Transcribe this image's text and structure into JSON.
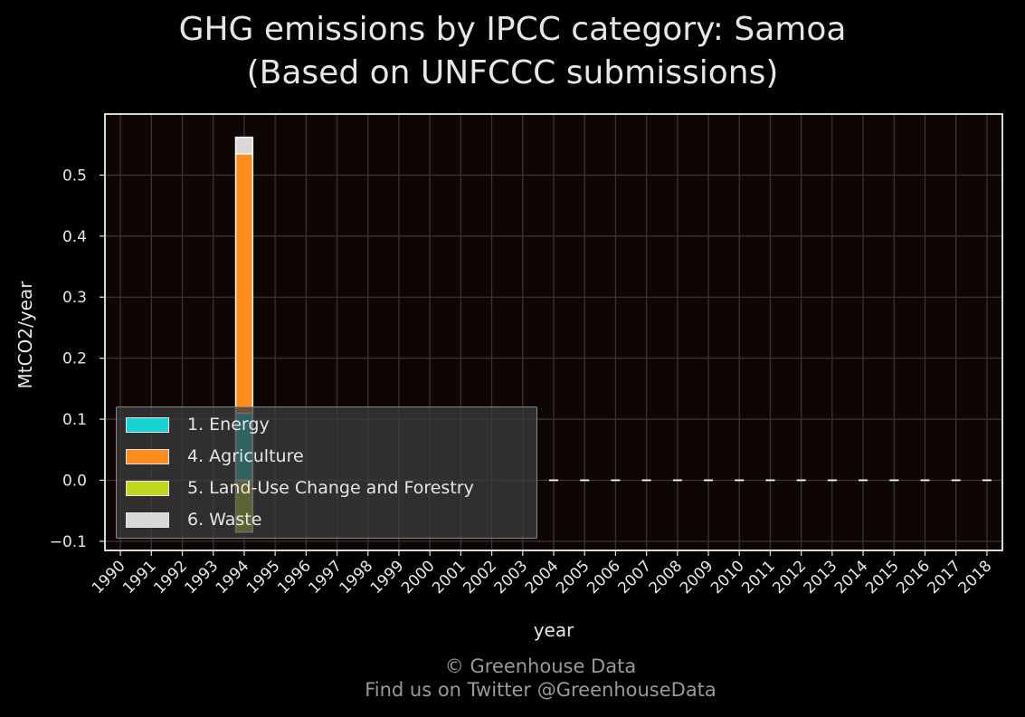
{
  "title_line1": "GHG emissions by IPCC category: Samoa",
  "title_line2": "(Based on UNFCCC submissions)",
  "footer_line1": "© Greenhouse Data",
  "footer_line2": "Find us on Twitter @GreenhouseData",
  "chart_data": {
    "type": "bar",
    "stacked": true,
    "xlabel": "year",
    "ylabel": "MtCO2/year",
    "ylim": [
      -0.115,
      0.6
    ],
    "yticks": [
      -0.1,
      0.0,
      0.1,
      0.2,
      0.3,
      0.4,
      0.5
    ],
    "grid": true,
    "legend_position": "bottom-left",
    "categories": [
      "1990",
      "1991",
      "1992",
      "1993",
      "1994",
      "1995",
      "1996",
      "1997",
      "1998",
      "1999",
      "2000",
      "2001",
      "2002",
      "2003",
      "2004",
      "2005",
      "2006",
      "2007",
      "2008",
      "2009",
      "2010",
      "2011",
      "2012",
      "2013",
      "2014",
      "2015",
      "2016",
      "2017",
      "2018"
    ],
    "series": [
      {
        "name": "1. Energy",
        "color": "#17d4d4",
        "values": [
          0,
          0,
          0,
          0,
          0.11,
          0,
          0,
          0,
          0,
          0,
          0,
          0,
          0,
          0,
          0,
          0,
          0,
          0,
          0,
          0,
          0,
          0,
          0,
          0,
          0,
          0,
          0,
          0,
          0
        ]
      },
      {
        "name": "4. Agriculture",
        "color": "#ff8c1f",
        "values": [
          0,
          0,
          0,
          0,
          0.425,
          0,
          0,
          0,
          0,
          0,
          0,
          0,
          0,
          0,
          0,
          0,
          0,
          0,
          0,
          0,
          0,
          0,
          0,
          0,
          0,
          0,
          0,
          0,
          0
        ]
      },
      {
        "name": "5. Land-Use Change and Forestry",
        "color": "#c0d820",
        "values": [
          0,
          0,
          0,
          0,
          -0.085,
          0,
          0,
          0,
          0,
          0,
          0,
          0,
          0,
          0,
          0,
          0,
          0,
          0,
          0,
          0,
          0,
          0,
          0,
          0,
          0,
          0,
          0,
          0,
          0
        ]
      },
      {
        "name": "6. Waste",
        "color": "#d8d8d8",
        "values": [
          0,
          0,
          0,
          0,
          0.027,
          0,
          0,
          0,
          0,
          0,
          0,
          0,
          0,
          0,
          0,
          0,
          0,
          0,
          0,
          0,
          0,
          0,
          0,
          0,
          0,
          0,
          0,
          0,
          0
        ]
      }
    ]
  }
}
